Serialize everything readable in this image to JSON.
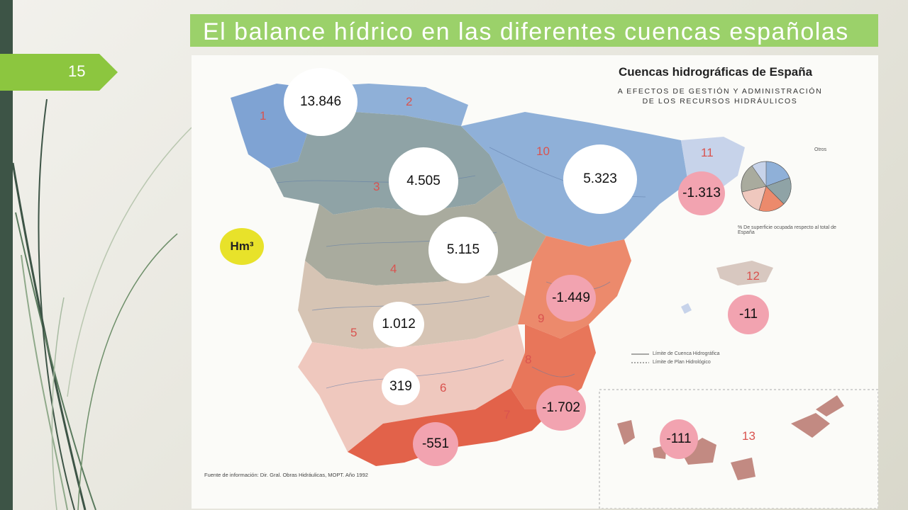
{
  "slide": {
    "number": "15",
    "title": "El balance hídrico en las diferentes cuencas españolas"
  },
  "map": {
    "title": "Cuencas hidrográficas de España",
    "subtitle_line1": "A EFECTOS DE GESTIÓN Y ADMINISTRACIÓN",
    "subtitle_line2": "DE LOS RECURSOS HIDRÁULICOS",
    "unit": "Hm³",
    "legend": {
      "line1": "Límite de Cuenca Hidrográfica",
      "line2": "Límite de Plan Hidrológico",
      "pie_note": "% De superficie ocupada respecto al total de España",
      "pie_other": "Otros"
    },
    "source": "Fuente de información: Dir. Gral. Obras Hidráulicas, MOPT. Año 1992",
    "basin_balances": [
      {
        "basin": "1",
        "value": "13.846"
      },
      {
        "basin": "3",
        "value": "4.505"
      },
      {
        "basin": "10",
        "value": "5.323"
      },
      {
        "basin": "11",
        "value": "-1.313"
      },
      {
        "basin": "4",
        "value": "5.115"
      },
      {
        "basin": "9",
        "value": "-1.449"
      },
      {
        "basin": "12",
        "value": "-11"
      },
      {
        "basin": "5",
        "value": "1.012"
      },
      {
        "basin": "6",
        "value": "319"
      },
      {
        "basin": "7",
        "value": "-1.702"
      },
      {
        "basin": "8",
        "value": "-551"
      },
      {
        "basin": "13",
        "value": "-111"
      }
    ],
    "basin_labels": [
      "1",
      "2",
      "3",
      "4",
      "5",
      "6",
      "7",
      "8",
      "9",
      "10",
      "11",
      "12",
      "13"
    ],
    "colors": {
      "north_basins": "#8fb0d8",
      "duero": "#8fa3a6",
      "tajo": "#a9ab9e",
      "guadiana": "#d6c4b4",
      "guadalquivir": "#efc8be",
      "mediterranean": "#ec8a6c",
      "sur": "#e2624a",
      "positive_bubble": "#ffffff",
      "negative_bubble": "#f2a3b0",
      "unit_bubble": "#e8e22a",
      "title_bar": "#9bd16a",
      "slide_badge": "#8cc63f"
    }
  }
}
